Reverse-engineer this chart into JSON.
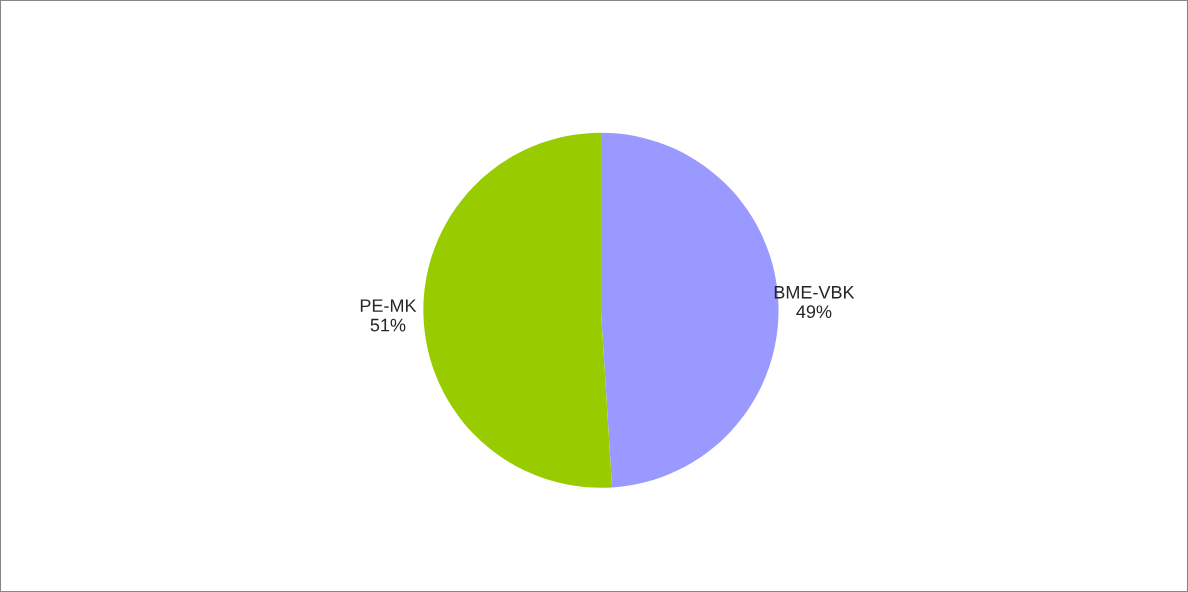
{
  "chart_data": {
    "type": "pie",
    "categories": [
      "BME-VBK",
      "PE-MK"
    ],
    "values": [
      49,
      51
    ],
    "value_labels": [
      "49%",
      "51%"
    ],
    "colors": [
      "#9999ff",
      "#99cc00"
    ],
    "legend": false
  }
}
